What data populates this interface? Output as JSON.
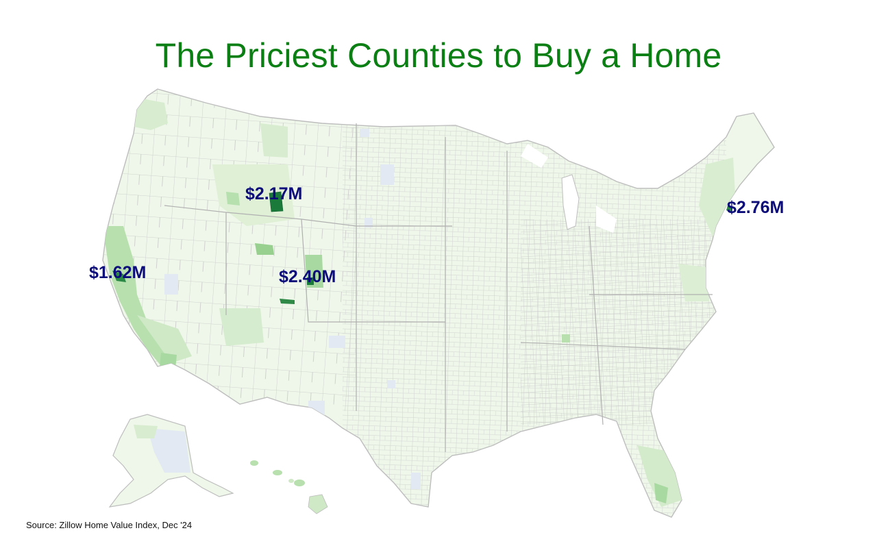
{
  "title": "The Priciest Counties to Buy a Home",
  "source": "Source: Zillow Home Value Index, Dec '24",
  "colors": {
    "title": "#0b7f14",
    "label": "#0b0b7a",
    "land_fill": "#eef7e9",
    "county_stroke": "#c3c3c3",
    "mid_green": "#cfe8c6",
    "light_green": "#a8d9a1",
    "dark_green": "#1a7a3a",
    "no_data": "#e3e9f2"
  },
  "callouts": [
    {
      "id": "teton-wy",
      "label": "$2.17M"
    },
    {
      "id": "nantucket-ma",
      "label": "$2.76M"
    },
    {
      "id": "san-mateo-ca",
      "label": "$1.62M"
    },
    {
      "id": "pitkin-co",
      "label": "$2.40M"
    }
  ]
}
